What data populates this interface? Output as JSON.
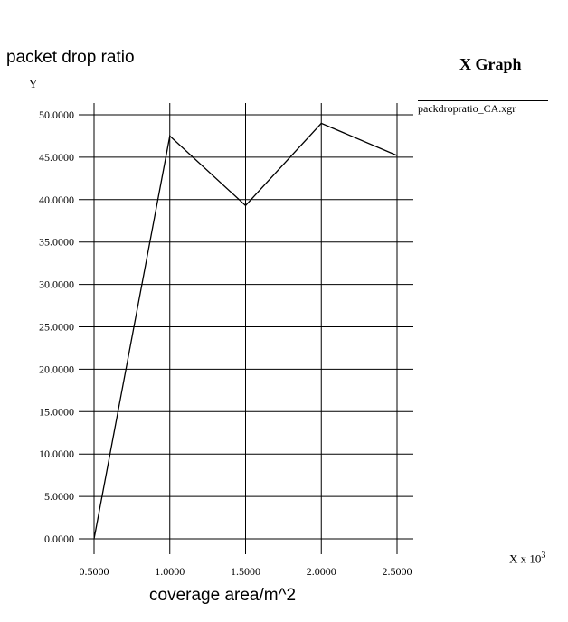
{
  "window": {
    "title": "X Graph"
  },
  "chart_data": {
    "type": "line",
    "title": "packet drop ratio",
    "xlabel": "coverage area/m^2",
    "ylabel": "Y",
    "x_scale_label": "X x 10",
    "x_scale_exponent": "3",
    "xlim": [
      0.5,
      2.5
    ],
    "ylim": [
      0,
      50
    ],
    "x_ticks": [
      "0.5000",
      "1.0000",
      "1.5000",
      "2.0000",
      "2.5000"
    ],
    "y_ticks": [
      "0.0000",
      "5.0000",
      "10.0000",
      "15.0000",
      "20.0000",
      "25.0000",
      "30.0000",
      "35.0000",
      "40.0000",
      "45.0000",
      "50.0000"
    ],
    "grid": true,
    "legend_position": "top-right",
    "series": [
      {
        "name": "packdropratio_CA.xgr",
        "color": "#000000",
        "x": [
          0.5,
          1.0,
          1.5,
          2.0,
          2.5
        ],
        "y": [
          0.0,
          47.5,
          39.3,
          49.0,
          45.2
        ]
      }
    ]
  }
}
